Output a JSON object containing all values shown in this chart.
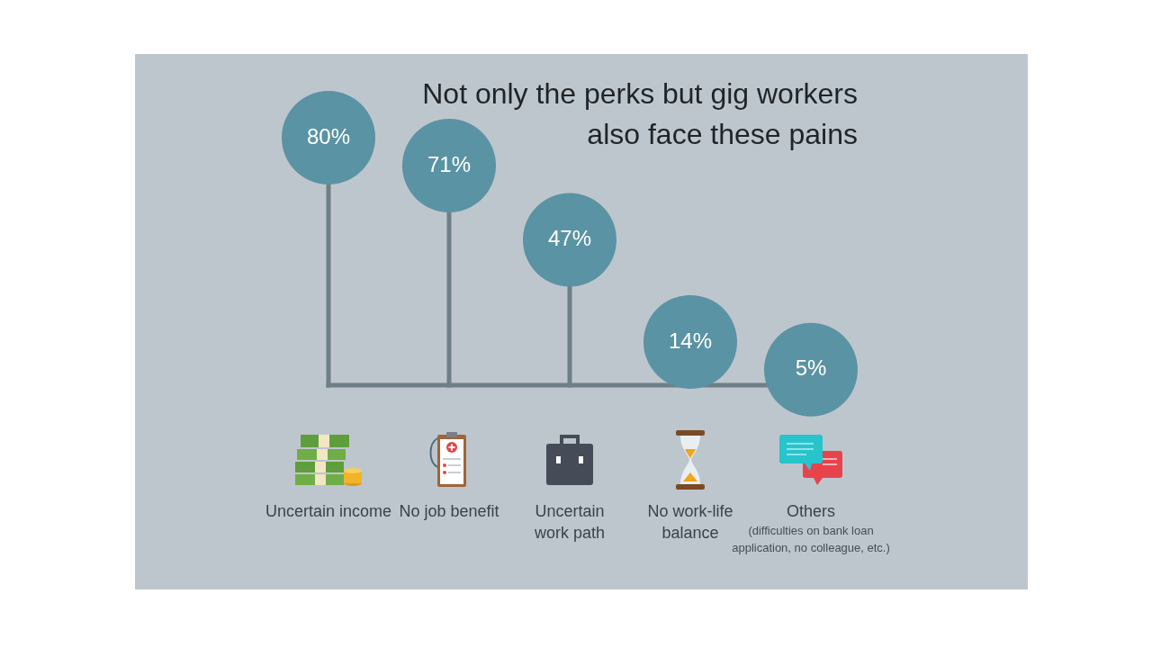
{
  "chart_data": {
    "type": "lollipop",
    "title": "Not only the perks but gig workers also face these pains",
    "categories": [
      "Uncertain income",
      "No job benefit",
      "Uncertain work path",
      "No work-life balance",
      "Others"
    ],
    "values": [
      80,
      71,
      47,
      14,
      5
    ],
    "value_labels": [
      "80%",
      "71%",
      "47%",
      "14%",
      "5%"
    ],
    "color": "#5a93a3",
    "annotations": [
      "(difficulties on bank loan application, no colleague, etc.)"
    ],
    "legend": false
  }
}
